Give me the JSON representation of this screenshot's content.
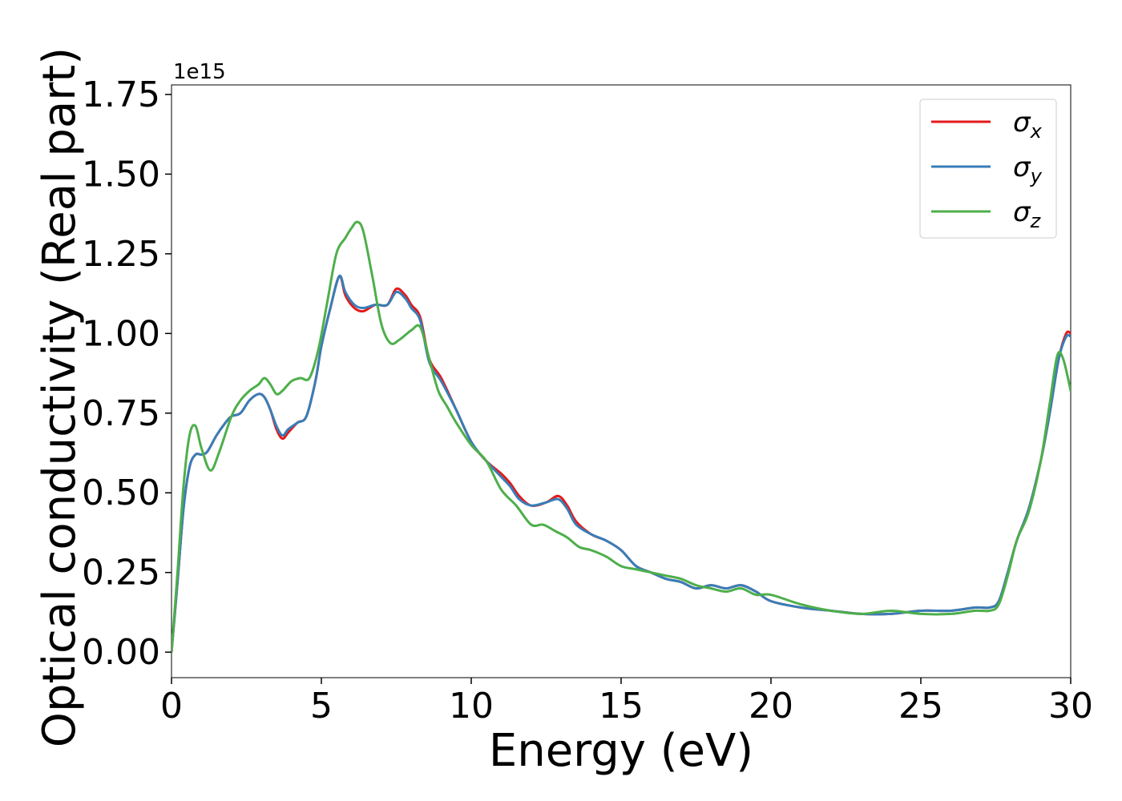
{
  "chart_data": {
    "type": "line",
    "title": "",
    "xlabel": "Energy (eV)",
    "ylabel": "Optical conductivity (Real part)",
    "y_offset_label": "1e15",
    "xlim": [
      0,
      30
    ],
    "ylim": [
      -0.08,
      1.78
    ],
    "x_ticks": [
      0,
      5,
      10,
      15,
      20,
      25,
      30
    ],
    "x_tick_labels": [
      "0",
      "5",
      "10",
      "15",
      "20",
      "25",
      "30"
    ],
    "y_ticks": [
      0.0,
      0.25,
      0.5,
      0.75,
      1.0,
      1.25,
      1.5,
      1.75
    ],
    "y_tick_labels": [
      "0.00",
      "0.25",
      "0.50",
      "0.75",
      "1.00",
      "1.25",
      "1.50",
      "1.75"
    ],
    "grid": false,
    "legend_position": "top-right",
    "series": [
      {
        "name": "σx",
        "symbol": "σ",
        "subscript": "x",
        "color": "#e41a1c",
        "points": [
          [
            0,
            0.0
          ],
          [
            0.2,
            0.22
          ],
          [
            0.4,
            0.45
          ],
          [
            0.6,
            0.58
          ],
          [
            0.8,
            0.62
          ],
          [
            1.0,
            0.62
          ],
          [
            1.2,
            0.63
          ],
          [
            1.5,
            0.68
          ],
          [
            1.8,
            0.72
          ],
          [
            2.0,
            0.74
          ],
          [
            2.3,
            0.75
          ],
          [
            2.6,
            0.79
          ],
          [
            2.9,
            0.81
          ],
          [
            3.1,
            0.8
          ],
          [
            3.3,
            0.76
          ],
          [
            3.5,
            0.7
          ],
          [
            3.7,
            0.67
          ],
          [
            3.9,
            0.69
          ],
          [
            4.2,
            0.72
          ],
          [
            4.5,
            0.74
          ],
          [
            4.8,
            0.85
          ],
          [
            5.0,
            0.96
          ],
          [
            5.3,
            1.08
          ],
          [
            5.6,
            1.18
          ],
          [
            5.8,
            1.12
          ],
          [
            6.1,
            1.08
          ],
          [
            6.4,
            1.07
          ],
          [
            6.8,
            1.09
          ],
          [
            7.2,
            1.09
          ],
          [
            7.5,
            1.14
          ],
          [
            7.8,
            1.12
          ],
          [
            8.0,
            1.09
          ],
          [
            8.3,
            1.05
          ],
          [
            8.6,
            0.92
          ],
          [
            9.0,
            0.86
          ],
          [
            9.5,
            0.76
          ],
          [
            10.0,
            0.66
          ],
          [
            10.5,
            0.6
          ],
          [
            11.0,
            0.56
          ],
          [
            11.3,
            0.53
          ],
          [
            11.6,
            0.49
          ],
          [
            12.0,
            0.46
          ],
          [
            12.5,
            0.47
          ],
          [
            12.9,
            0.49
          ],
          [
            13.2,
            0.46
          ],
          [
            13.5,
            0.41
          ],
          [
            14.0,
            0.37
          ],
          [
            14.5,
            0.35
          ],
          [
            15.0,
            0.32
          ],
          [
            15.5,
            0.27
          ],
          [
            16.0,
            0.25
          ],
          [
            16.5,
            0.23
          ],
          [
            17.0,
            0.22
          ],
          [
            17.5,
            0.2
          ],
          [
            18.0,
            0.21
          ],
          [
            18.5,
            0.2
          ],
          [
            19.0,
            0.21
          ],
          [
            19.5,
            0.19
          ],
          [
            20.0,
            0.16
          ],
          [
            21.0,
            0.14
          ],
          [
            22.0,
            0.13
          ],
          [
            23.0,
            0.12
          ],
          [
            24.0,
            0.12
          ],
          [
            25.0,
            0.13
          ],
          [
            26.0,
            0.13
          ],
          [
            26.8,
            0.14
          ],
          [
            27.3,
            0.14
          ],
          [
            27.6,
            0.16
          ],
          [
            27.9,
            0.25
          ],
          [
            28.2,
            0.35
          ],
          [
            28.6,
            0.45
          ],
          [
            29.0,
            0.6
          ],
          [
            29.3,
            0.75
          ],
          [
            29.6,
            0.92
          ],
          [
            29.85,
            1.0
          ],
          [
            30.0,
            1.0
          ]
        ]
      },
      {
        "name": "σy",
        "symbol": "σ",
        "subscript": "y",
        "color": "#377eb8",
        "points": [
          [
            0,
            0.0
          ],
          [
            0.2,
            0.22
          ],
          [
            0.4,
            0.45
          ],
          [
            0.6,
            0.58
          ],
          [
            0.8,
            0.62
          ],
          [
            1.0,
            0.62
          ],
          [
            1.2,
            0.63
          ],
          [
            1.5,
            0.68
          ],
          [
            1.8,
            0.72
          ],
          [
            2.0,
            0.74
          ],
          [
            2.3,
            0.75
          ],
          [
            2.6,
            0.79
          ],
          [
            2.9,
            0.81
          ],
          [
            3.1,
            0.8
          ],
          [
            3.3,
            0.76
          ],
          [
            3.5,
            0.71
          ],
          [
            3.7,
            0.68
          ],
          [
            3.9,
            0.7
          ],
          [
            4.2,
            0.72
          ],
          [
            4.5,
            0.74
          ],
          [
            4.8,
            0.85
          ],
          [
            5.0,
            0.96
          ],
          [
            5.3,
            1.08
          ],
          [
            5.6,
            1.18
          ],
          [
            5.8,
            1.13
          ],
          [
            6.1,
            1.09
          ],
          [
            6.4,
            1.08
          ],
          [
            6.8,
            1.09
          ],
          [
            7.2,
            1.09
          ],
          [
            7.5,
            1.13
          ],
          [
            7.8,
            1.11
          ],
          [
            8.0,
            1.08
          ],
          [
            8.3,
            1.04
          ],
          [
            8.6,
            0.91
          ],
          [
            9.0,
            0.85
          ],
          [
            9.5,
            0.76
          ],
          [
            10.0,
            0.66
          ],
          [
            10.5,
            0.6
          ],
          [
            11.0,
            0.55
          ],
          [
            11.3,
            0.52
          ],
          [
            11.6,
            0.48
          ],
          [
            12.0,
            0.46
          ],
          [
            12.5,
            0.47
          ],
          [
            12.9,
            0.48
          ],
          [
            13.2,
            0.45
          ],
          [
            13.5,
            0.4
          ],
          [
            14.0,
            0.37
          ],
          [
            14.5,
            0.35
          ],
          [
            15.0,
            0.32
          ],
          [
            15.5,
            0.27
          ],
          [
            16.0,
            0.25
          ],
          [
            16.5,
            0.23
          ],
          [
            17.0,
            0.22
          ],
          [
            17.5,
            0.2
          ],
          [
            18.0,
            0.21
          ],
          [
            18.5,
            0.2
          ],
          [
            19.0,
            0.21
          ],
          [
            19.5,
            0.19
          ],
          [
            20.0,
            0.16
          ],
          [
            21.0,
            0.14
          ],
          [
            22.0,
            0.13
          ],
          [
            23.0,
            0.12
          ],
          [
            24.0,
            0.12
          ],
          [
            25.0,
            0.13
          ],
          [
            26.0,
            0.13
          ],
          [
            26.8,
            0.14
          ],
          [
            27.3,
            0.14
          ],
          [
            27.6,
            0.16
          ],
          [
            27.9,
            0.25
          ],
          [
            28.2,
            0.35
          ],
          [
            28.6,
            0.45
          ],
          [
            29.0,
            0.6
          ],
          [
            29.3,
            0.75
          ],
          [
            29.6,
            0.92
          ],
          [
            29.85,
            0.99
          ],
          [
            30.0,
            0.99
          ]
        ]
      },
      {
        "name": "σz",
        "symbol": "σ",
        "subscript": "z",
        "color": "#4daf4a",
        "points": [
          [
            0,
            0.0
          ],
          [
            0.2,
            0.25
          ],
          [
            0.4,
            0.52
          ],
          [
            0.6,
            0.68
          ],
          [
            0.8,
            0.71
          ],
          [
            1.0,
            0.64
          ],
          [
            1.3,
            0.57
          ],
          [
            1.6,
            0.63
          ],
          [
            2.0,
            0.74
          ],
          [
            2.3,
            0.79
          ],
          [
            2.6,
            0.82
          ],
          [
            2.9,
            0.84
          ],
          [
            3.1,
            0.86
          ],
          [
            3.3,
            0.84
          ],
          [
            3.5,
            0.81
          ],
          [
            3.7,
            0.82
          ],
          [
            4.0,
            0.85
          ],
          [
            4.3,
            0.86
          ],
          [
            4.6,
            0.86
          ],
          [
            4.9,
            0.95
          ],
          [
            5.2,
            1.1
          ],
          [
            5.5,
            1.25
          ],
          [
            5.8,
            1.3
          ],
          [
            6.0,
            1.33
          ],
          [
            6.2,
            1.35
          ],
          [
            6.4,
            1.32
          ],
          [
            6.7,
            1.18
          ],
          [
            7.0,
            1.03
          ],
          [
            7.3,
            0.97
          ],
          [
            7.6,
            0.98
          ],
          [
            8.0,
            1.01
          ],
          [
            8.3,
            1.02
          ],
          [
            8.6,
            0.92
          ],
          [
            8.9,
            0.82
          ],
          [
            9.2,
            0.77
          ],
          [
            9.5,
            0.72
          ],
          [
            10.0,
            0.65
          ],
          [
            10.5,
            0.6
          ],
          [
            11.0,
            0.51
          ],
          [
            11.5,
            0.46
          ],
          [
            12.0,
            0.4
          ],
          [
            12.4,
            0.4
          ],
          [
            12.8,
            0.38
          ],
          [
            13.2,
            0.36
          ],
          [
            13.6,
            0.33
          ],
          [
            14.0,
            0.32
          ],
          [
            14.5,
            0.3
          ],
          [
            15.0,
            0.27
          ],
          [
            15.5,
            0.26
          ],
          [
            16.0,
            0.25
          ],
          [
            16.5,
            0.24
          ],
          [
            17.0,
            0.23
          ],
          [
            17.5,
            0.21
          ],
          [
            18.0,
            0.2
          ],
          [
            18.5,
            0.19
          ],
          [
            19.0,
            0.2
          ],
          [
            19.5,
            0.18
          ],
          [
            20.0,
            0.18
          ],
          [
            21.0,
            0.15
          ],
          [
            22.0,
            0.13
          ],
          [
            23.0,
            0.12
          ],
          [
            24.0,
            0.13
          ],
          [
            25.0,
            0.12
          ],
          [
            26.0,
            0.12
          ],
          [
            26.8,
            0.13
          ],
          [
            27.3,
            0.13
          ],
          [
            27.6,
            0.15
          ],
          [
            27.9,
            0.24
          ],
          [
            28.2,
            0.35
          ],
          [
            28.6,
            0.44
          ],
          [
            29.0,
            0.6
          ],
          [
            29.3,
            0.78
          ],
          [
            29.55,
            0.93
          ],
          [
            29.75,
            0.92
          ],
          [
            30.0,
            0.82
          ]
        ]
      }
    ]
  }
}
